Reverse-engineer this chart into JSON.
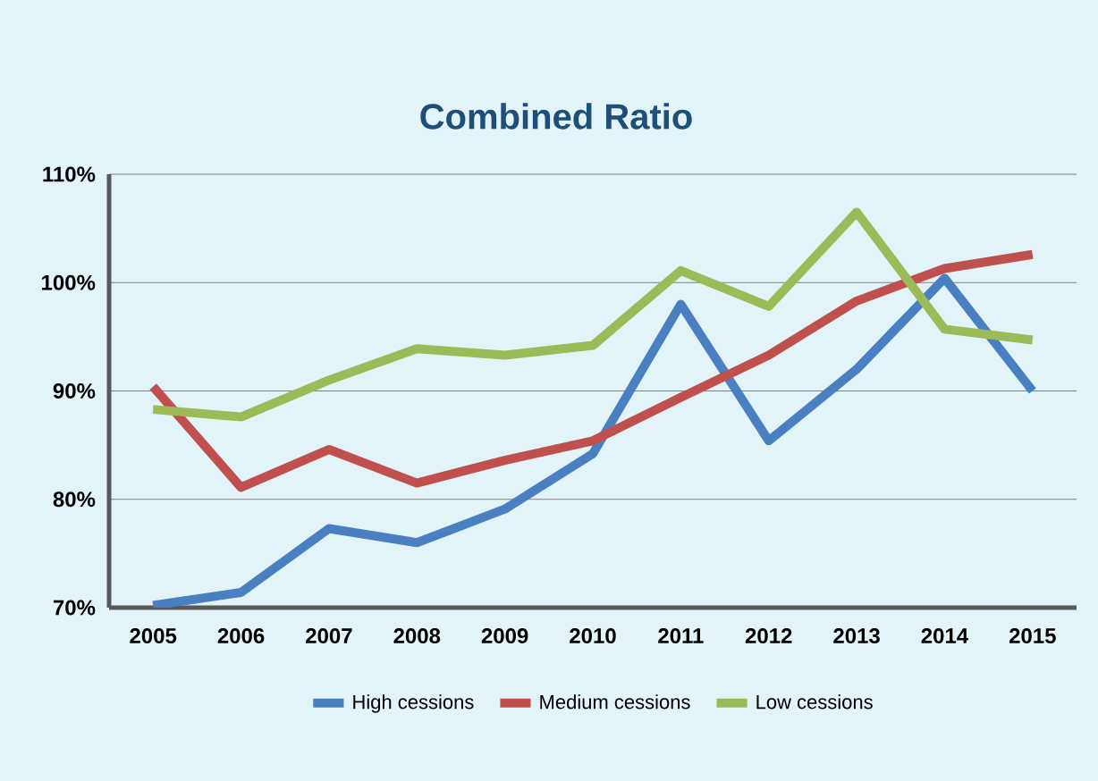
{
  "chart_data": {
    "type": "line",
    "title": "Combined Ratio",
    "categories": [
      "2005",
      "2006",
      "2007",
      "2008",
      "2009",
      "2010",
      "2011",
      "2012",
      "2013",
      "2014",
      "2015"
    ],
    "series": [
      {
        "name": "High cessions",
        "color": "#4a7fc1",
        "values": [
          70.2,
          71.4,
          77.3,
          76.0,
          79.1,
          84.2,
          98.0,
          85.4,
          92.0,
          100.4,
          90.0
        ]
      },
      {
        "name": "Medium cessions",
        "color": "#c0504d",
        "values": [
          90.4,
          81.1,
          84.6,
          81.5,
          83.6,
          85.4,
          89.4,
          93.3,
          98.3,
          101.3,
          102.6
        ]
      },
      {
        "name": "Low cessions",
        "color": "#9bbb59",
        "values": [
          88.3,
          87.6,
          91.0,
          93.9,
          93.3,
          94.2,
          101.1,
          97.8,
          106.5,
          95.7,
          94.7
        ]
      }
    ],
    "ylim": [
      70,
      110
    ],
    "yticks": [
      {
        "value": 70,
        "label": "70%"
      },
      {
        "value": 80,
        "label": "80%"
      },
      {
        "value": 90,
        "label": "90%"
      },
      {
        "value": 100,
        "label": "100%"
      },
      {
        "value": 110,
        "label": "110%"
      }
    ],
    "grid": "y",
    "legend": "bottom",
    "marker": "none",
    "line_style": "solid"
  }
}
